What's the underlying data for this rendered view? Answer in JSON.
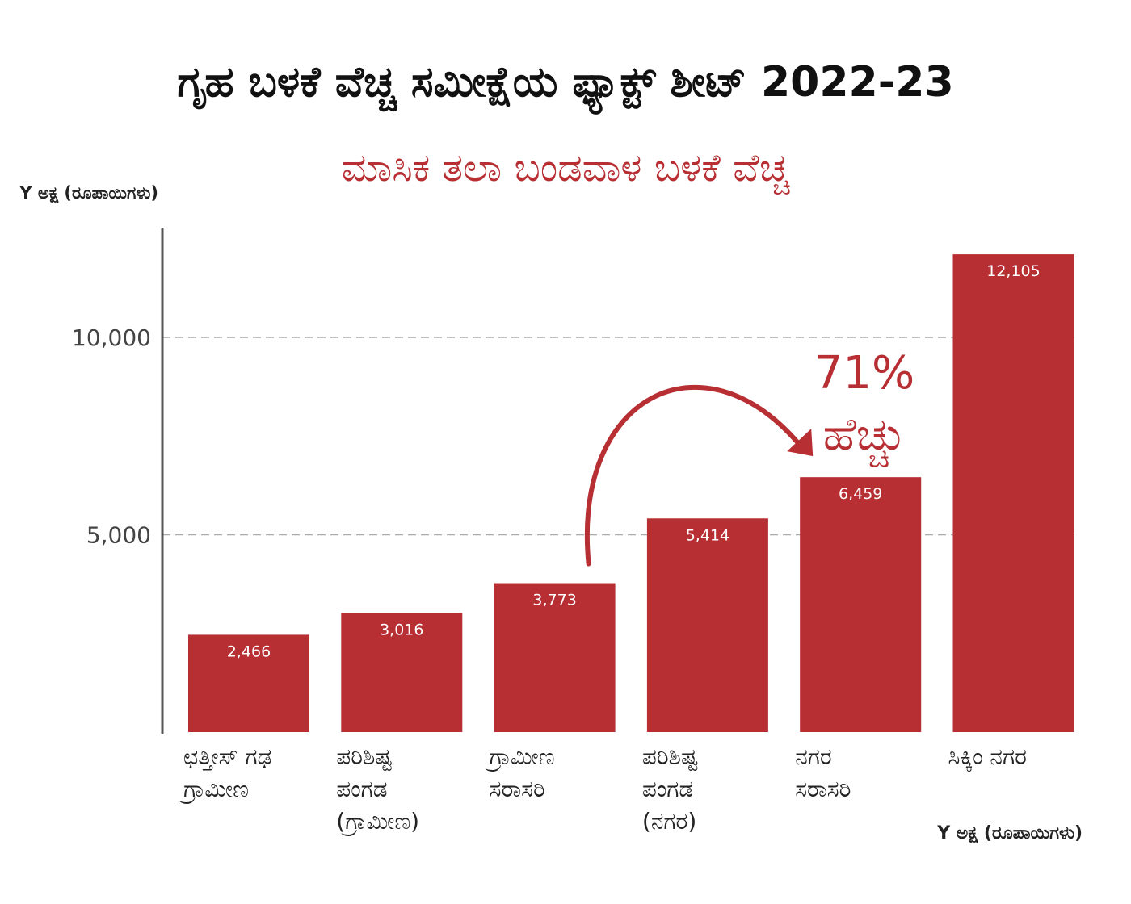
{
  "title": "ಗೃಹ ಬಳಕೆ ವೆಚ್ಚ ಸಮೀಕ್ಷೆಯ ಫ್ಯಾಕ್ಟ್ ಶೀಟ್ 2022-23",
  "subtitle": "ಮಾಸಿಕ ತಲಾ ಬಂಡವಾಳ ಬಳಕೆ ವೆಚ್ಚ",
  "colors": {
    "bar": "#b72e33",
    "accent": "#b72e33",
    "axis": "#555555",
    "grid": "#aaaaaa"
  },
  "chart_data": {
    "type": "bar",
    "title": "ಮಾಸಿಕ ತಲಾ ಬಂಡವಾಳ ಬಳಕೆ ವೆಚ್ಚ",
    "ylabel": "Y ಅಕ್ಷ (ರೂಪಾಯಿಗಳು)",
    "xlabel": "Y ಅಕ್ಷ (ರೂಪಾಯಿಗಳು)",
    "categories": [
      "ಛತ್ತೀಸ್ ಗಢ ಗ್ರಾಮೀಣ",
      "ಪರಿಶಿಷ್ಟ ಪಂಗಡ (ಗ್ರಾಮೀಣ)",
      "ಗ್ರಾಮೀಣ ಸರಾಸರಿ",
      "ಪರಿಶಿಷ್ಟ ಪಂಗಡ (ನಗರ)",
      "ನಗರ ಸರಾಸರಿ",
      "ಸಿಕ್ಕಿಂ ನಗರ"
    ],
    "values": [
      2466,
      3016,
      3773,
      5414,
      6459,
      12105
    ],
    "value_labels": [
      "2,466",
      "3,016",
      "3,773",
      "5,414",
      "6,459",
      "12,105"
    ],
    "ylim": [
      0,
      12700
    ],
    "yticks": [
      {
        "value": 5000,
        "label": "5,000"
      },
      {
        "value": 10000,
        "label": "10,000"
      }
    ],
    "grid": "dashed horizontal at ticks",
    "annotation": {
      "text_line1": "71%",
      "text_line2": "ಹೆಚ್ಚು",
      "from_category": "ಗ್ರಾಮೀಣ ಸರಾಸರಿ",
      "to_category": "ನಗರ ಸರಾಸರಿ"
    }
  },
  "category_lines": [
    [
      "ಛತ್ತೀಸ್ ಗಢ",
      "ಗ್ರಾಮೀಣ"
    ],
    [
      "ಪರಿಶಿಷ್ಟ",
      "ಪಂಗಡ",
      "(ಗ್ರಾಮೀಣ)"
    ],
    [
      "ಗ್ರಾಮೀಣ",
      "ಸರಾಸರಿ"
    ],
    [
      "ಪರಿಶಿಷ್ಟ",
      "ಪಂಗಡ",
      "(ನಗರ)"
    ],
    [
      "ನಗರ",
      "ಸರಾಸರಿ"
    ],
    [
      "ಸಿಕ್ಕಿಂ ನಗರ"
    ]
  ]
}
